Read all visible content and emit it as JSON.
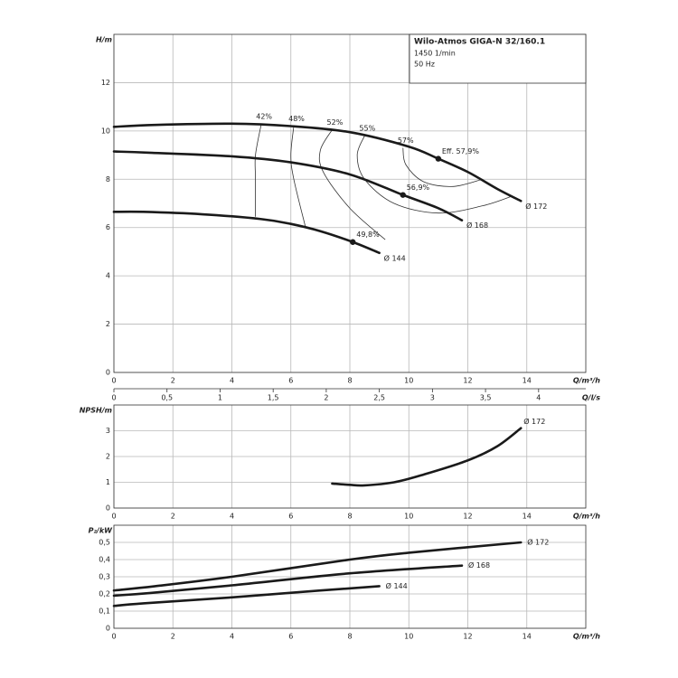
{
  "chart_data": [
    {
      "type": "line",
      "ylabel": "H/m",
      "xlabel": "Q/m³/h",
      "x2label": "Q/l/s",
      "title": "Wilo-Atmos GIGA-N 32/160.1",
      "subtitle": [
        "1450 1/min",
        "50 Hz"
      ],
      "xlim": [
        0,
        16
      ],
      "xticks": [
        0,
        2,
        4,
        6,
        8,
        10,
        12,
        14
      ],
      "x2lim": [
        0,
        4.4444
      ],
      "x2ticks": [
        0,
        {
          "value": 0.5,
          "label": "0,5"
        },
        1,
        {
          "value": 1.5,
          "label": "1,5"
        },
        2,
        {
          "value": 2.5,
          "label": "2,5"
        },
        3,
        {
          "value": 3.5,
          "label": "3,5"
        },
        4
      ],
      "ylim": [
        0,
        14
      ],
      "yticks": [
        0,
        2,
        4,
        6,
        8,
        10,
        12
      ],
      "grid": true,
      "series": [
        {
          "name": "Ø 172",
          "color": "#1a1a1a",
          "x": [
            0,
            1.4,
            4,
            6,
            8,
            10,
            11,
            12,
            13,
            13.8
          ],
          "values": [
            10.17,
            10.25,
            10.3,
            10.2,
            9.95,
            9.35,
            8.85,
            8.3,
            7.6,
            7.1
          ]
        },
        {
          "name": "Ø 168",
          "color": "#1a1a1a",
          "x": [
            0,
            1.2,
            4,
            6,
            8,
            9.8,
            11,
            11.8
          ],
          "values": [
            9.15,
            9.1,
            8.95,
            8.7,
            8.2,
            7.35,
            6.8,
            6.3
          ]
        },
        {
          "name": "Ø 144",
          "color": "#1a1a1a",
          "x": [
            0,
            1,
            3,
            5,
            6,
            7,
            8.1,
            9
          ],
          "values": [
            6.65,
            6.65,
            6.55,
            6.35,
            6.15,
            5.85,
            5.4,
            4.95
          ]
        }
      ],
      "efficiency_lines": [
        {
          "name": "42%",
          "color": "#333333",
          "x": [
            5.0,
            4.8,
            4.8,
            4.8
          ],
          "values": [
            10.3,
            9.0,
            8.0,
            6.45
          ]
        },
        {
          "name": "48%",
          "color": "#333333",
          "x": [
            6.1,
            6.0,
            6.1,
            6.5
          ],
          "values": [
            10.2,
            9.0,
            8.0,
            6.0
          ]
        },
        {
          "name": "52%",
          "color": "#333333",
          "x": [
            7.4,
            7.0,
            7.1,
            8.0,
            9.2
          ],
          "values": [
            10.05,
            9.2,
            8.3,
            6.8,
            5.5
          ]
        },
        {
          "name": "55%",
          "color": "#333333",
          "x": [
            8.5,
            8.25,
            8.5,
            9.5,
            11,
            12.5,
            13.5
          ],
          "values": [
            9.8,
            9.0,
            8.0,
            7.0,
            6.6,
            6.9,
            7.3
          ]
        },
        {
          "name": "57%",
          "color": "#333333",
          "x": [
            9.8,
            9.9,
            10.5,
            11.5,
            12.5
          ],
          "values": [
            9.3,
            8.6,
            7.9,
            7.7,
            8.0
          ]
        }
      ],
      "points": [
        {
          "label": "Eff. 57,9%",
          "x": 11,
          "y": 8.85
        },
        {
          "label": "56,9%",
          "x": 9.8,
          "y": 7.35
        },
        {
          "label": "49,8%",
          "x": 8.1,
          "y": 5.4
        }
      ]
    },
    {
      "type": "line",
      "ylabel": "NPSH/m",
      "xlabel": "Q/m³/h",
      "xlim": [
        0,
        16
      ],
      "xticks": [
        0,
        2,
        4,
        6,
        8,
        10,
        12,
        14
      ],
      "ylim": [
        0,
        4
      ],
      "yticks": [
        0,
        1,
        2,
        3
      ],
      "grid": true,
      "series": [
        {
          "name": "Ø 172",
          "color": "#1a1a1a",
          "x": [
            7.4,
            8.0,
            8.5,
            9.5,
            10.5,
            12,
            13,
            13.8
          ],
          "values": [
            0.95,
            0.9,
            0.88,
            1.0,
            1.3,
            1.85,
            2.4,
            3.1
          ]
        }
      ]
    },
    {
      "type": "line",
      "ylabel": "P₂/kW",
      "xlabel": "Q/m³/h",
      "xlim": [
        0,
        16
      ],
      "xticks": [
        0,
        2,
        4,
        6,
        8,
        10,
        12,
        14
      ],
      "ylim": [
        0,
        0.6
      ],
      "yticks": [
        0,
        {
          "value": 0.1,
          "label": "0,1"
        },
        {
          "value": 0.2,
          "label": "0,2"
        },
        {
          "value": 0.3,
          "label": "0,3"
        },
        {
          "value": 0.4,
          "label": "0,4"
        },
        {
          "value": 0.5,
          "label": "0,5"
        }
      ],
      "grid": true,
      "series": [
        {
          "name": "Ø 172",
          "color": "#1a1a1a",
          "x": [
            0,
            1.4,
            4,
            8,
            10,
            13.8
          ],
          "values": [
            0.22,
            0.245,
            0.3,
            0.4,
            0.44,
            0.5
          ]
        },
        {
          "name": "Ø 168",
          "color": "#1a1a1a",
          "x": [
            0,
            1.2,
            4,
            8,
            11.8
          ],
          "values": [
            0.19,
            0.205,
            0.25,
            0.32,
            0.365
          ]
        },
        {
          "name": "Ø 144",
          "color": "#1a1a1a",
          "x": [
            0,
            1,
            4,
            7,
            9
          ],
          "values": [
            0.13,
            0.145,
            0.18,
            0.22,
            0.245
          ]
        }
      ]
    }
  ]
}
